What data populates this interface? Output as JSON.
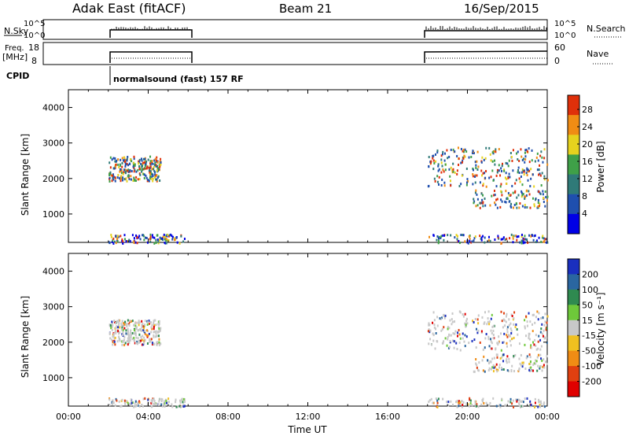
{
  "header": {
    "radar": "Adak East (fitACF)",
    "beam": "Beam 21",
    "date": "16/Sep/2015"
  },
  "strip_labels": {
    "nsky": "N.Sky",
    "nsky_hi": "10^5",
    "nsky_lo": "10^0",
    "nsearch": "N.Search",
    "nsearch_hi": "10^5",
    "nsearch_lo": "10^0",
    "freq_top": "Freq.",
    "freq_unit": "[MHz]",
    "freq_hi": "18",
    "freq_lo": "8",
    "nave": "Nave",
    "nave_hi": "60",
    "nave_lo": "0",
    "cpid": "CPID",
    "cpid_text": "normalsound (fast) 157 RF"
  },
  "chart_data": [
    {
      "type": "heatmap",
      "name": "power",
      "ylabel": "Slant Range [km]",
      "yticks": [
        1000,
        2000,
        3000,
        4000
      ],
      "ylim": [
        200,
        4500
      ],
      "xlim": [
        0,
        24
      ],
      "colorbar_label": "Power [dB]",
      "colorbar_ticks": [
        "4",
        "8",
        "12",
        "16",
        "20",
        "24",
        "28"
      ],
      "colors": [
        "#0000e6",
        "#1f4fae",
        "#2f7a78",
        "#3fa048",
        "#e6d21e",
        "#f08c14",
        "#e0300a"
      ],
      "scatter_patches": [
        {
          "t0": 2.0,
          "t1": 4.6,
          "r0": 1950,
          "r1": 2650
        },
        {
          "t0": 18.0,
          "t1": 24.0,
          "r0": 1800,
          "r1": 2900
        },
        {
          "t0": 20.2,
          "t1": 24.0,
          "r0": 1200,
          "r1": 1700
        },
        {
          "t0": 2.0,
          "t1": 5.8,
          "r0": 200,
          "r1": 450
        },
        {
          "t0": 18.0,
          "t1": 24.0,
          "r0": 200,
          "r1": 450
        }
      ]
    },
    {
      "type": "heatmap",
      "name": "velocity",
      "ylabel": "Slant Range [km]",
      "yticks": [
        1000,
        2000,
        3000,
        4000
      ],
      "ylim": [
        200,
        4500
      ],
      "xlim": [
        0,
        24
      ],
      "xlabel": "Time UT",
      "xticks": [
        "00:00",
        "04:00",
        "08:00",
        "12:00",
        "16:00",
        "20:00",
        "00:00"
      ],
      "colorbar_label": "Velocity [m s⁻¹]",
      "colorbar_ticks": [
        "200",
        "100",
        "50",
        "15",
        "-15",
        "-50",
        "-100",
        "-200"
      ],
      "colors": [
        "#1a2fbf",
        "#2a66a0",
        "#2f8a50",
        "#6ec83a",
        "#c8c8c8",
        "#f0c020",
        "#f08c14",
        "#e04010",
        "#e00000"
      ],
      "scatter_patches": [
        {
          "t0": 2.0,
          "t1": 4.6,
          "r0": 1950,
          "r1": 2650
        },
        {
          "t0": 18.0,
          "t1": 24.0,
          "r0": 1800,
          "r1": 2900
        },
        {
          "t0": 20.2,
          "t1": 24.0,
          "r0": 1200,
          "r1": 1700
        },
        {
          "t0": 2.0,
          "t1": 5.8,
          "r0": 200,
          "r1": 450
        },
        {
          "t0": 18.0,
          "t1": 24.0,
          "r0": 200,
          "r1": 450
        }
      ]
    }
  ]
}
